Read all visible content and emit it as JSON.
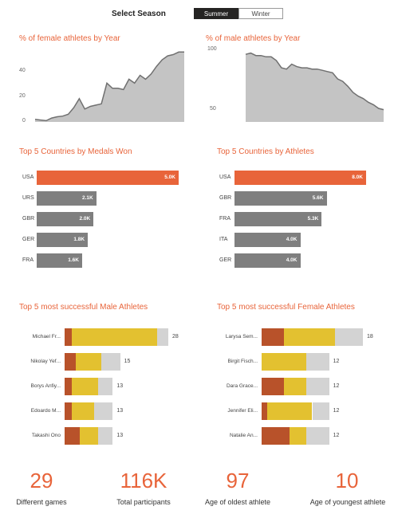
{
  "slicer": {
    "label": "Select Season",
    "options": [
      "Summer",
      "Winter"
    ],
    "selected": "Summer"
  },
  "colors": {
    "accent": "#e8643a",
    "bar_gray": "#7f7f7f",
    "area_fill": "#c4c4c4",
    "line": "#707070",
    "gold": "#e3c130",
    "bronze": "#b8522a",
    "silver": "#d3d3d3"
  },
  "chart_data": [
    {
      "type": "area",
      "title": "% of female athletes by Year",
      "yticks": [
        "0",
        "20",
        "40"
      ],
      "ylim": [
        0,
        56
      ],
      "values": [
        2,
        1.5,
        1,
        3,
        4,
        4.5,
        6,
        11,
        18,
        10,
        12,
        13,
        14,
        30,
        26,
        26,
        25,
        33,
        30,
        36,
        33,
        37,
        43,
        48,
        51,
        52,
        54,
        54
      ]
    },
    {
      "type": "area",
      "title": "% of male athletes by Year",
      "yticks": [
        "50",
        "100"
      ],
      "ylim": [
        43,
        102
      ],
      "values": [
        98,
        99,
        97,
        97,
        96,
        96,
        93,
        87,
        86,
        90,
        88,
        87,
        87,
        86,
        86,
        85,
        84,
        83,
        78,
        76,
        72,
        67,
        64,
        62,
        59,
        57,
        54,
        53
      ]
    },
    {
      "type": "bar",
      "title": "Top 5 Countries by Medals Won",
      "categories": [
        "USA",
        "URS",
        "GBR",
        "GER",
        "FRA"
      ],
      "values": [
        5.0,
        2.1,
        2.0,
        1.8,
        1.6
      ],
      "labels": [
        "5.0K",
        "2.1K",
        "2.0K",
        "1.8K",
        "1.6K"
      ],
      "max": 5.0
    },
    {
      "type": "bar",
      "title": "Top 5 Countries by Athletes",
      "categories": [
        "USA",
        "GBR",
        "FRA",
        "ITA",
        "GER"
      ],
      "values": [
        8.0,
        5.6,
        5.3,
        4.0,
        4.0
      ],
      "labels": [
        "8.0K",
        "5.6K",
        "5.3K",
        "4.0K",
        "4.0K"
      ],
      "max": 8.0
    },
    {
      "type": "bar",
      "title": "Top 5 most successful Male Athletes",
      "athletes": [
        "Michael Fr...",
        "Nikolay Yef...",
        "Borys Anfiy...",
        "Edoardo M...",
        "Takashi Ono"
      ],
      "series": [
        {
          "name": "Bronze",
          "values": [
            2,
            3,
            2,
            2,
            4
          ]
        },
        {
          "name": "Gold",
          "values": [
            23,
            7,
            7,
            6,
            5
          ]
        },
        {
          "name": "Silver",
          "values": [
            3,
            5,
            4,
            5,
            4
          ]
        }
      ],
      "totals": [
        "28",
        "15",
        "13",
        "13",
        "13"
      ],
      "max": 28
    },
    {
      "type": "bar",
      "title": "Top 5 most successful Female Athletes",
      "athletes": [
        "Larysa Sem...",
        "Birgit Fisch...",
        "Dara Grace...",
        "Jennifer Eli...",
        "Natalie An..."
      ],
      "series": [
        {
          "name": "Bronze",
          "values": [
            4,
            0,
            4,
            1,
            5
          ]
        },
        {
          "name": "Gold",
          "values": [
            9,
            8,
            4,
            8,
            3
          ]
        },
        {
          "name": "Silver",
          "values": [
            5,
            4,
            4,
            3,
            4
          ]
        }
      ],
      "totals": [
        "18",
        "12",
        "12",
        "12",
        "12"
      ],
      "max": 18
    }
  ],
  "kpis": [
    {
      "value": "29",
      "label": "Different games"
    },
    {
      "value": "116K",
      "label": "Total participants"
    },
    {
      "value": "97",
      "label": "Age of oldest athlete"
    },
    {
      "value": "10",
      "label": "Age of youngest athlete"
    }
  ]
}
